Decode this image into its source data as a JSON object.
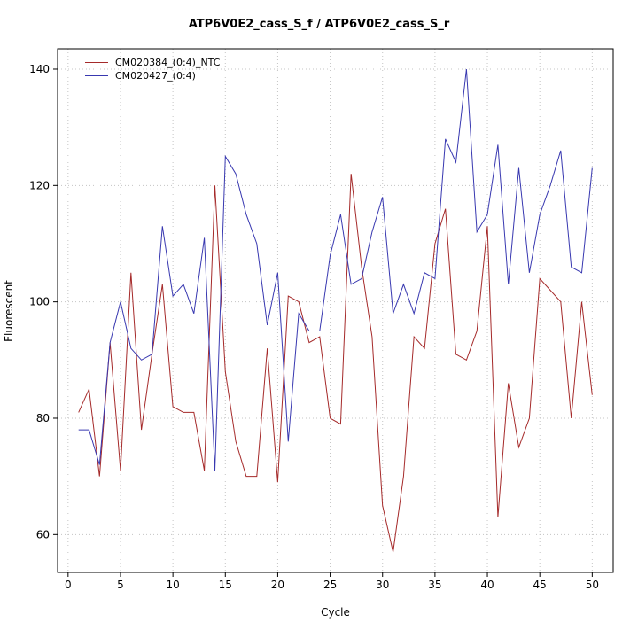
{
  "chart": {
    "title": "ATP6V0E2_cass_S_f / ATP6V0E2_cass_S_r",
    "xlabel": "Cycle",
    "ylabel": "Fluorescent"
  },
  "chart_data": {
    "type": "line",
    "title": "ATP6V0E2_cass_S_f / ATP6V0E2_cass_S_r",
    "xlabel": "Cycle",
    "ylabel": "Fluorescent",
    "xlim": [
      -1,
      52
    ],
    "ylim": [
      53.5,
      143.5
    ],
    "xticks": [
      0,
      5,
      10,
      15,
      20,
      25,
      30,
      35,
      40,
      45,
      50
    ],
    "yticks": [
      60,
      80,
      100,
      120,
      140
    ],
    "grid": true,
    "legend_position": "top-left",
    "grid_color": "#c4c4c4",
    "axis_color": "#000000",
    "x": [
      1,
      2,
      3,
      4,
      5,
      6,
      7,
      8,
      9,
      10,
      11,
      12,
      13,
      14,
      15,
      16,
      17,
      18,
      19,
      20,
      21,
      22,
      23,
      24,
      25,
      26,
      27,
      28,
      29,
      30,
      31,
      32,
      33,
      34,
      35,
      36,
      37,
      38,
      39,
      40,
      41,
      42,
      43,
      44,
      45,
      46,
      47,
      48,
      49,
      50
    ],
    "series": [
      {
        "name": "CM020384_(0:4)_NTC",
        "color": "#a52a2a",
        "values": [
          81,
          85,
          70,
          93,
          71,
          105,
          78,
          91,
          103,
          82,
          81,
          81,
          71,
          120,
          88,
          76,
          70,
          70,
          92,
          69,
          101,
          100,
          93,
          94,
          80,
          79,
          122,
          106,
          94,
          65,
          57,
          70,
          94,
          92,
          110,
          116,
          91,
          90,
          95,
          113,
          63,
          86,
          75,
          80,
          104,
          102,
          100,
          80,
          100,
          84
        ]
      },
      {
        "name": "CM020427_(0:4)",
        "color": "#3838b0",
        "values": [
          78,
          78,
          72,
          93,
          100,
          92,
          90,
          91,
          113,
          101,
          103,
          98,
          111,
          71,
          125,
          122,
          115,
          110,
          96,
          105,
          76,
          98,
          95,
          95,
          108,
          115,
          103,
          104,
          112,
          118,
          98,
          103,
          98,
          105,
          104,
          128,
          124,
          140,
          112,
          115,
          127,
          103,
          123,
          105,
          115,
          120,
          126,
          106,
          105,
          123
        ]
      }
    ]
  }
}
